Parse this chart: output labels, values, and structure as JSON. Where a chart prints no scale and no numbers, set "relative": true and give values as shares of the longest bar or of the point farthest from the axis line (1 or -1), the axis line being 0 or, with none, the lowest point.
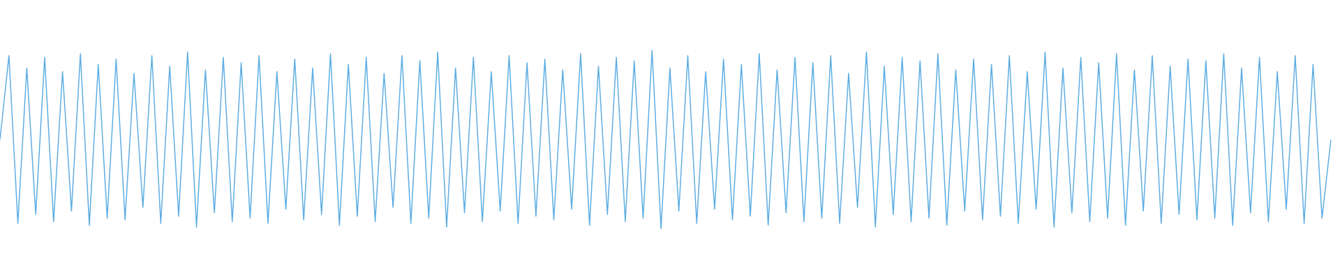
{
  "chart_data": {
    "type": "line",
    "relative": true,
    "line_style": "solid",
    "categories": [
      null,
      null,
      null,
      null,
      null,
      null,
      null,
      null,
      null,
      null,
      null,
      null,
      null,
      null,
      null,
      null,
      null,
      null,
      null,
      null,
      null,
      null,
      null,
      null,
      null,
      null,
      null,
      null,
      null,
      null,
      null,
      null,
      null,
      null,
      null,
      null,
      null,
      null,
      null,
      null,
      null,
      null,
      null,
      null,
      null,
      null,
      null,
      null,
      null,
      null,
      null,
      null,
      null,
      null,
      null,
      null,
      null,
      null,
      null,
      null,
      null,
      null,
      null,
      null,
      null,
      null,
      null,
      null,
      null,
      null,
      null,
      null,
      null,
      null,
      null,
      null,
      null,
      null,
      null,
      null,
      null,
      null,
      null,
      null,
      null,
      null,
      null,
      null,
      null,
      null,
      null,
      null,
      null,
      null,
      null,
      null,
      null,
      null,
      null,
      null,
      null,
      null,
      null,
      null,
      null,
      null,
      null,
      null,
      null,
      null,
      null,
      null,
      null,
      null,
      null,
      null,
      null,
      null,
      null,
      null,
      null,
      null,
      null,
      null,
      null,
      null,
      null,
      null,
      null,
      null,
      null,
      null,
      null,
      null,
      null,
      null,
      null,
      null,
      null,
      null,
      null,
      null,
      null,
      null,
      null,
      null,
      null,
      null,
      null,
      null
    ],
    "series": [
      {
        "color": "#5dade2",
        "values": [
          0.5,
          0.97,
          0.03,
          0.9,
          0.08,
          0.96,
          0.04,
          0.88,
          0.1,
          0.98,
          0.02,
          0.92,
          0.06,
          0.95,
          0.05,
          0.87,
          0.12,
          0.97,
          0.03,
          0.91,
          0.07,
          0.99,
          0.01,
          0.89,
          0.09,
          0.96,
          0.04,
          0.93,
          0.06,
          0.97,
          0.03,
          0.88,
          0.11,
          0.95,
          0.05,
          0.9,
          0.08,
          0.98,
          0.02,
          0.92,
          0.07,
          0.96,
          0.04,
          0.87,
          0.12,
          0.97,
          0.03,
          0.94,
          0.06,
          0.99,
          0.01,
          0.9,
          0.09,
          0.96,
          0.04,
          0.88,
          0.1,
          0.97,
          0.03,
          0.93,
          0.07,
          0.95,
          0.05,
          0.89,
          0.11,
          0.98,
          0.02,
          0.91,
          0.08,
          0.96,
          0.04,
          0.94,
          0.06,
          1.0,
          0.0,
          0.9,
          0.1,
          0.97,
          0.03,
          0.88,
          0.11,
          0.95,
          0.05,
          0.92,
          0.07,
          0.98,
          0.02,
          0.89,
          0.09,
          0.96,
          0.04,
          0.93,
          0.06,
          0.97,
          0.03,
          0.87,
          0.12,
          0.99,
          0.01,
          0.91,
          0.08,
          0.96,
          0.04,
          0.94,
          0.06,
          0.98,
          0.02,
          0.89,
          0.1,
          0.95,
          0.05,
          0.92,
          0.07,
          0.97,
          0.03,
          0.88,
          0.11,
          0.99,
          0.01,
          0.9,
          0.09,
          0.96,
          0.04,
          0.93,
          0.06,
          0.98,
          0.02,
          0.89,
          0.1,
          0.97,
          0.03,
          0.91,
          0.08,
          0.95,
          0.05,
          0.94,
          0.06,
          0.98,
          0.02,
          0.9,
          0.09,
          0.96,
          0.04,
          0.88,
          0.11,
          0.97,
          0.03,
          0.92,
          0.06,
          0.5
        ]
      }
    ]
  }
}
